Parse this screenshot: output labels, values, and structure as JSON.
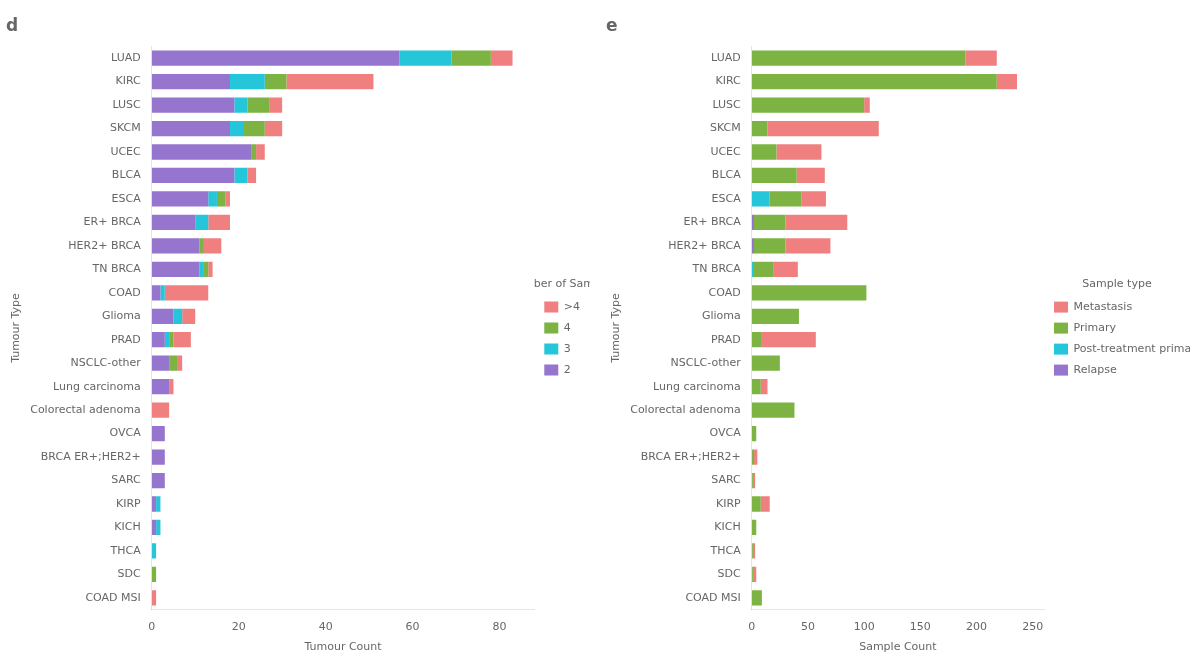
{
  "chart_data": [
    {
      "type": "bar",
      "title": "d",
      "orientation": "horizontal",
      "stacked": true,
      "grid": false,
      "legend": "right",
      "legend_title": "Number of Samples",
      "x_label": "Tumour Count",
      "y_label": "Tumour Type",
      "categories": [
        "LUAD",
        "KIRC",
        "LUSC",
        "SKCM",
        "UCEC",
        "BLCA",
        "ESCA",
        "ER+ BRCA",
        "HER2+ BRCA",
        "TN BRCA",
        "COAD",
        "Glioma",
        "PRAD",
        "NSCLC-other",
        "Lung carcinoma",
        "Colorectal adenoma",
        "OVCA",
        "BRCA ER+;HER2+",
        "SARC",
        "KIRP",
        "KICH",
        "THCA",
        "SDC",
        "COAD MSI"
      ],
      "xlim": [
        0,
        88
      ],
      "xticks": [
        0,
        20,
        40,
        60,
        80
      ],
      "series": [
        {
          "name": "2",
          "color": "#9575CD",
          "values": [
            57,
            18,
            19,
            18,
            23,
            19,
            13,
            10,
            11,
            11,
            2,
            5,
            3,
            4,
            4,
            0,
            3,
            3,
            3,
            1,
            1,
            0,
            0,
            0
          ]
        },
        {
          "name": "3",
          "color": "#26C6DA",
          "values": [
            12,
            8,
            3,
            3,
            0,
            3,
            2,
            3,
            0,
            1,
            1,
            2,
            1,
            0,
            0,
            0,
            0,
            0,
            0,
            1,
            1,
            1,
            0,
            0
          ]
        },
        {
          "name": "4",
          "color": "#7CB342",
          "values": [
            9,
            5,
            5,
            5,
            1,
            0,
            2,
            0,
            1,
            1,
            0,
            0,
            1,
            2,
            0,
            0,
            0,
            0,
            0,
            0,
            0,
            0,
            1,
            0
          ]
        },
        {
          "name": ">4",
          "color": "#F08080",
          "values": [
            5,
            20,
            3,
            4,
            2,
            2,
            1,
            5,
            4,
            1,
            10,
            3,
            4,
            1,
            1,
            4,
            0,
            0,
            0,
            0,
            0,
            0,
            0,
            1
          ]
        }
      ]
    },
    {
      "type": "bar",
      "title": "e",
      "orientation": "horizontal",
      "stacked": true,
      "grid": false,
      "legend": "right",
      "legend_title": "Sample type",
      "x_label": "Sample Count",
      "y_label": "Tumour Type",
      "categories": [
        "LUAD",
        "KIRC",
        "LUSC",
        "SKCM",
        "UCEC",
        "BLCA",
        "ESCA",
        "ER+ BRCA",
        "HER2+ BRCA",
        "TN BRCA",
        "COAD",
        "Glioma",
        "PRAD",
        "NSCLC-other",
        "Lung carcinoma",
        "Colorectal adenoma",
        "OVCA",
        "BRCA ER+;HER2+",
        "SARC",
        "KIRP",
        "KICH",
        "THCA",
        "SDC",
        "COAD MSI"
      ],
      "xlim": [
        0,
        260
      ],
      "xticks": [
        0,
        50,
        100,
        150,
        200,
        250
      ],
      "series": [
        {
          "name": "Relapse",
          "color": "#9575CD",
          "values": [
            0,
            0,
            0,
            0,
            0,
            0,
            0,
            2,
            2,
            0,
            0,
            0,
            0,
            0,
            0,
            0,
            0,
            0,
            0,
            0,
            0,
            0,
            0,
            0
          ]
        },
        {
          "name": "Post-treatment primary",
          "color": "#26C6DA",
          "values": [
            0,
            0,
            0,
            0,
            0,
            0,
            16,
            0,
            0,
            2,
            0,
            0,
            0,
            0,
            0,
            0,
            0,
            0,
            0,
            0,
            0,
            0,
            0,
            0
          ]
        },
        {
          "name": "Primary",
          "color": "#7CB342",
          "values": [
            190,
            218,
            100,
            14,
            22,
            40,
            28,
            28,
            28,
            17,
            102,
            42,
            9,
            25,
            8,
            38,
            4,
            2,
            1,
            8,
            4,
            1,
            1,
            9
          ]
        },
        {
          "name": "Metastasis",
          "color": "#F08080",
          "values": [
            28,
            18,
            5,
            99,
            40,
            25,
            22,
            55,
            40,
            22,
            0,
            0,
            48,
            0,
            6,
            0,
            0,
            3,
            2,
            8,
            0,
            2,
            3,
            0
          ]
        }
      ]
    }
  ]
}
